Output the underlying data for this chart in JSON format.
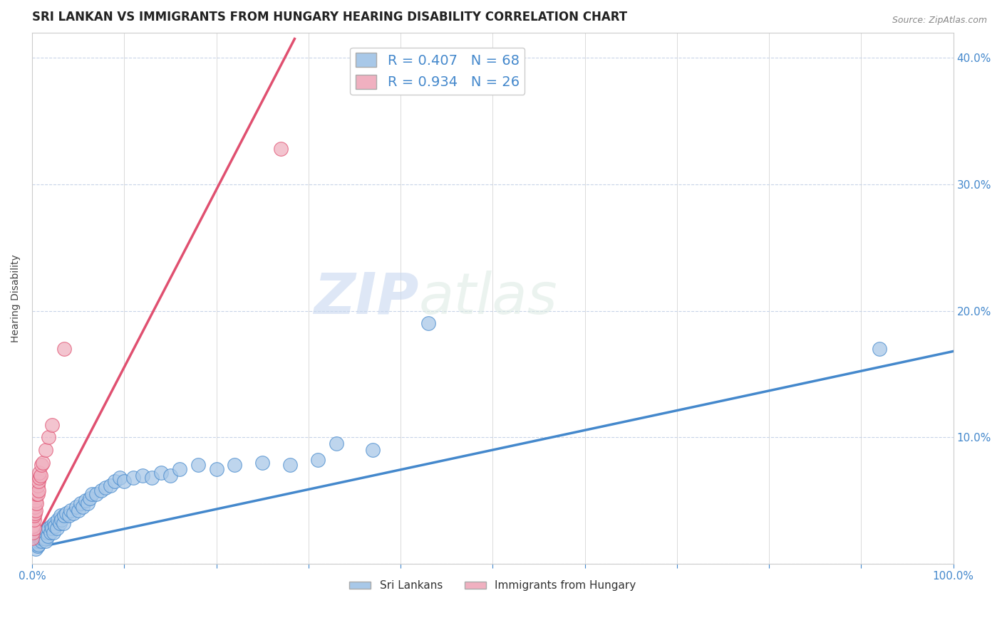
{
  "title": "SRI LANKAN VS IMMIGRANTS FROM HUNGARY HEARING DISABILITY CORRELATION CHART",
  "source": "Source: ZipAtlas.com",
  "ylabel": "Hearing Disability",
  "watermark_zip": "ZIP",
  "watermark_atlas": "atlas",
  "xlim": [
    0.0,
    1.0
  ],
  "ylim": [
    0.0,
    0.42
  ],
  "xtick_positions": [
    0.0,
    0.1,
    0.2,
    0.3,
    0.4,
    0.5,
    0.6,
    0.7,
    0.8,
    0.9,
    1.0
  ],
  "xtick_labels": [
    "0.0%",
    "",
    "",
    "",
    "",
    "",
    "",
    "",
    "",
    "",
    "100.0%"
  ],
  "ytick_positions": [
    0.0,
    0.1,
    0.2,
    0.3,
    0.4
  ],
  "ytick_labels_right": [
    "",
    "10.0%",
    "20.0%",
    "30.0%",
    "40.0%"
  ],
  "legend1_label": "R = 0.407   N = 68",
  "legend2_label": "R = 0.934   N = 26",
  "series1_color": "#a8c8e8",
  "series2_color": "#f0b0c0",
  "line1_color": "#4488cc",
  "line2_color": "#e05070",
  "background_color": "#ffffff",
  "grid_color": "#c8d4e8",
  "title_color": "#222222",
  "tick_color": "#4488cc",
  "label_color": "#444444",
  "title_fontsize": 12,
  "axis_label_fontsize": 10,
  "tick_fontsize": 11,
  "legend_fontsize": 14,
  "source_fontsize": 9,
  "line1_x_start": 0.0,
  "line1_x_end": 1.0,
  "line1_y_start": 0.012,
  "line1_y_end": 0.168,
  "line2_x_start": 0.0,
  "line2_x_end": 0.285,
  "line2_y_start": 0.015,
  "line2_y_end": 0.415,
  "series1_x": [
    0.0,
    0.002,
    0.003,
    0.004,
    0.005,
    0.005,
    0.006,
    0.006,
    0.007,
    0.008,
    0.009,
    0.01,
    0.011,
    0.012,
    0.013,
    0.014,
    0.015,
    0.016,
    0.017,
    0.018,
    0.02,
    0.021,
    0.022,
    0.023,
    0.024,
    0.025,
    0.027,
    0.028,
    0.03,
    0.031,
    0.032,
    0.034,
    0.035,
    0.037,
    0.04,
    0.042,
    0.045,
    0.048,
    0.05,
    0.053,
    0.055,
    0.058,
    0.06,
    0.063,
    0.065,
    0.07,
    0.075,
    0.08,
    0.085,
    0.09,
    0.095,
    0.1,
    0.11,
    0.12,
    0.13,
    0.14,
    0.15,
    0.16,
    0.18,
    0.2,
    0.22,
    0.25,
    0.28,
    0.31,
    0.33,
    0.37,
    0.43,
    0.92
  ],
  "series1_y": [
    0.02,
    0.015,
    0.018,
    0.012,
    0.016,
    0.02,
    0.014,
    0.018,
    0.015,
    0.02,
    0.022,
    0.018,
    0.02,
    0.022,
    0.025,
    0.02,
    0.018,
    0.025,
    0.022,
    0.028,
    0.025,
    0.03,
    0.028,
    0.025,
    0.032,
    0.03,
    0.028,
    0.035,
    0.032,
    0.038,
    0.035,
    0.032,
    0.038,
    0.04,
    0.038,
    0.042,
    0.04,
    0.045,
    0.042,
    0.048,
    0.045,
    0.05,
    0.048,
    0.052,
    0.055,
    0.055,
    0.058,
    0.06,
    0.062,
    0.065,
    0.068,
    0.065,
    0.068,
    0.07,
    0.068,
    0.072,
    0.07,
    0.075,
    0.078,
    0.075,
    0.078,
    0.08,
    0.078,
    0.082,
    0.095,
    0.09,
    0.19,
    0.17
  ],
  "series2_x": [
    0.0,
    0.001,
    0.001,
    0.002,
    0.002,
    0.002,
    0.003,
    0.003,
    0.004,
    0.004,
    0.005,
    0.005,
    0.006,
    0.006,
    0.007,
    0.007,
    0.008,
    0.008,
    0.009,
    0.01,
    0.012,
    0.015,
    0.018,
    0.022,
    0.035,
    0.27
  ],
  "series2_y": [
    0.02,
    0.025,
    0.03,
    0.028,
    0.035,
    0.038,
    0.04,
    0.045,
    0.042,
    0.05,
    0.048,
    0.055,
    0.055,
    0.062,
    0.058,
    0.065,
    0.068,
    0.072,
    0.07,
    0.078,
    0.08,
    0.09,
    0.1,
    0.11,
    0.17,
    0.328
  ]
}
